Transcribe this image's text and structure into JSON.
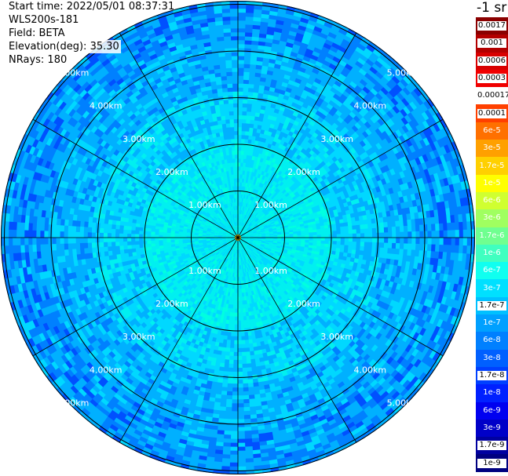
{
  "header": {
    "start_time": "Start time: 2022/05/01 08:37:31",
    "instrument": "WLS200s-181",
    "field": "Field: BETA",
    "elevation_label": "Elevation(deg):",
    "elevation_value": "35.30",
    "nrays": "NRays: 180"
  },
  "unit": "-1 sr",
  "colorbar": [
    {
      "label": "0.0017",
      "color": "#8b0000",
      "text": "light"
    },
    {
      "label": "0.001",
      "color": "#b30000",
      "text": "light"
    },
    {
      "label": "0.0006",
      "color": "#d80000",
      "text": "light"
    },
    {
      "label": "0.0003",
      "color": "#f00000",
      "text": "light"
    },
    {
      "label": "0.00017",
      "color": "#ffffff",
      "text": "light"
    },
    {
      "label": "0.0001",
      "color": "#ff4000",
      "text": "light"
    },
    {
      "label": "6e-5",
      "color": "#ff7000",
      "text": "dark"
    },
    {
      "label": "3e-5",
      "color": "#ffa000",
      "text": "dark"
    },
    {
      "label": "1.7e-5",
      "color": "#ffd000",
      "text": "dark"
    },
    {
      "label": "1e-5",
      "color": "#ffff00",
      "text": "dark"
    },
    {
      "label": "6e-6",
      "color": "#d0ff30",
      "text": "dark"
    },
    {
      "label": "3e-6",
      "color": "#a0ff60",
      "text": "dark"
    },
    {
      "label": "1.7e-6",
      "color": "#70ff90",
      "text": "dark"
    },
    {
      "label": "1e-6",
      "color": "#40ffc0",
      "text": "dark"
    },
    {
      "label": "6e-7",
      "color": "#10fff0",
      "text": "dark"
    },
    {
      "label": "3e-7",
      "color": "#00e0ff",
      "text": "dark"
    },
    {
      "label": "1.7e-7",
      "color": "#00c0ff",
      "text": "light"
    },
    {
      "label": "1e-7",
      "color": "#00a0ff",
      "text": "dark"
    },
    {
      "label": "6e-8",
      "color": "#0080ff",
      "text": "dark"
    },
    {
      "label": "3e-8",
      "color": "#0060ff",
      "text": "dark"
    },
    {
      "label": "1.7e-8",
      "color": "#0040ff",
      "text": "light"
    },
    {
      "label": "1e-8",
      "color": "#0020ff",
      "text": "dark"
    },
    {
      "label": "6e-9",
      "color": "#0000f0",
      "text": "dark"
    },
    {
      "label": "3e-9",
      "color": "#0000c8",
      "text": "dark"
    },
    {
      "label": "1.7e-9",
      "color": "#0000a0",
      "text": "light"
    },
    {
      "label": "1e-9",
      "color": "#000080",
      "text": "light"
    }
  ],
  "range_rings": [
    "1.00km",
    "2.00km",
    "3.00km",
    "4.00km",
    "5.00km"
  ],
  "field_colors": {
    "center": "#00ffe0",
    "inner": "#00f0f0",
    "mid": "#00d8ff",
    "outer": "#00b0ff",
    "edge": "#0080ff",
    "sparse": "#0050ff"
  }
}
